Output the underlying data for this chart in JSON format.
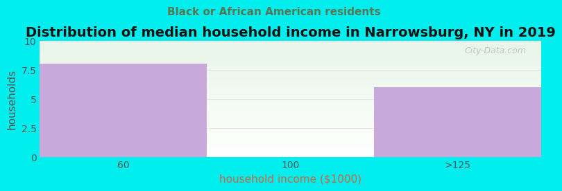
{
  "title": "Distribution of median household income in Narrowsburg, NY in 2019",
  "subtitle": "Black or African American residents",
  "xlabel": "household income ($1000)",
  "ylabel": "households",
  "categories": [
    "60",
    "100",
    ">125"
  ],
  "values": [
    8,
    0,
    6
  ],
  "bar_colors": [
    "#c9a8dc",
    "#d8edd8",
    "#c9a8dc"
  ],
  "ylim": [
    0,
    10
  ],
  "yticks": [
    0,
    2.5,
    5,
    7.5,
    10
  ],
  "background_color": "#00eeee",
  "plot_bg_top": "#e8f5e8",
  "plot_bg_bottom": "#ffffff",
  "title_fontsize": 14,
  "subtitle_fontsize": 11,
  "subtitle_color": "#557755",
  "axis_label_color": "#cc6644",
  "tick_color": "#555555",
  "watermark": "City-Data.com"
}
